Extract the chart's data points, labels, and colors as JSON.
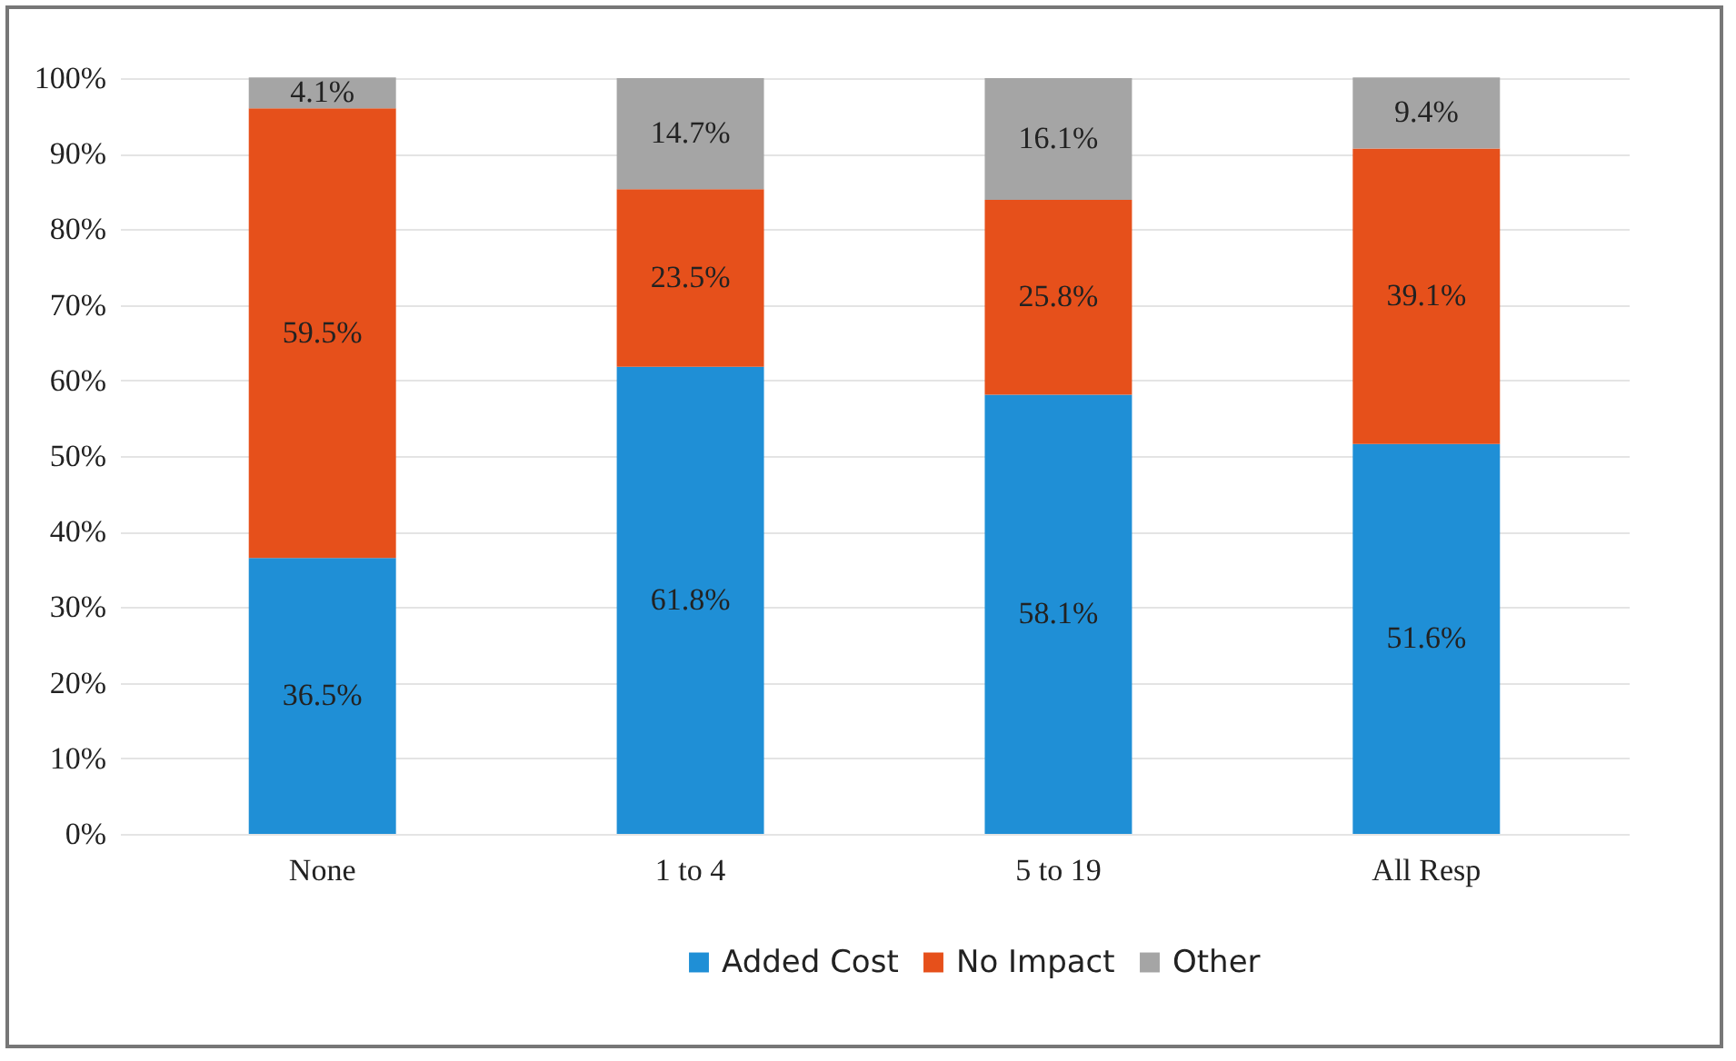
{
  "chart_data": {
    "type": "bar",
    "stacked": true,
    "categories": [
      "None",
      "1 to 4",
      "5 to 19",
      "All Resp"
    ],
    "series": [
      {
        "name": "Added Cost",
        "color": "#1f8fd6",
        "values": [
          36.5,
          61.8,
          58.1,
          51.6
        ],
        "value_labels": [
          "36.5%",
          "61.8%",
          "58.1%",
          "51.6%"
        ]
      },
      {
        "name": "No Impact",
        "color": "#e6501b",
        "values": [
          59.5,
          23.5,
          25.8,
          39.1
        ],
        "value_labels": [
          "59.5%",
          "23.5%",
          "25.8%",
          "39.1%"
        ]
      },
      {
        "name": "Other",
        "color": "#a5a5a5",
        "values": [
          4.1,
          14.7,
          16.1,
          9.4
        ],
        "value_labels": [
          "4.1%",
          "14.7%",
          "16.1%",
          "9.4%"
        ]
      }
    ],
    "ylim": [
      0,
      100
    ],
    "yticks": [
      {
        "value": 0,
        "label": "0%"
      },
      {
        "value": 10,
        "label": "10%"
      },
      {
        "value": 20,
        "label": "20%"
      },
      {
        "value": 30,
        "label": "30%"
      },
      {
        "value": 40,
        "label": "40%"
      },
      {
        "value": 50,
        "label": "50%"
      },
      {
        "value": 60,
        "label": "60%"
      },
      {
        "value": 70,
        "label": "70%"
      },
      {
        "value": 80,
        "label": "80%"
      },
      {
        "value": 90,
        "label": "90%"
      },
      {
        "value": 100,
        "label": "100%"
      }
    ],
    "grid": "y",
    "legend": "bottom"
  }
}
